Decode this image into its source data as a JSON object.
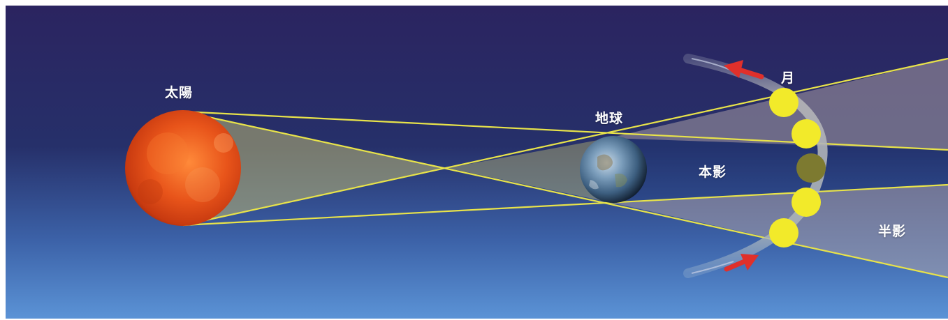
{
  "labels": {
    "sun": "太陽",
    "earth": "地球",
    "moon": "月",
    "umbra": "本影",
    "penumbra": "半影"
  },
  "colors": {
    "sky_top": "#2b2460",
    "sky_bottom": "#5b93d6",
    "shadow_line": "#e8e34a",
    "moon": "#f2ea2a",
    "moon_eclipsed": "#7d7a30",
    "arrow": "#e0302b",
    "sun": "#e8541a",
    "earth": "#5a7fa0"
  },
  "icons": {
    "sun": "sun-icon",
    "earth": "earth-icon",
    "moon": "moon-icon",
    "arrow": "arrow-icon"
  }
}
